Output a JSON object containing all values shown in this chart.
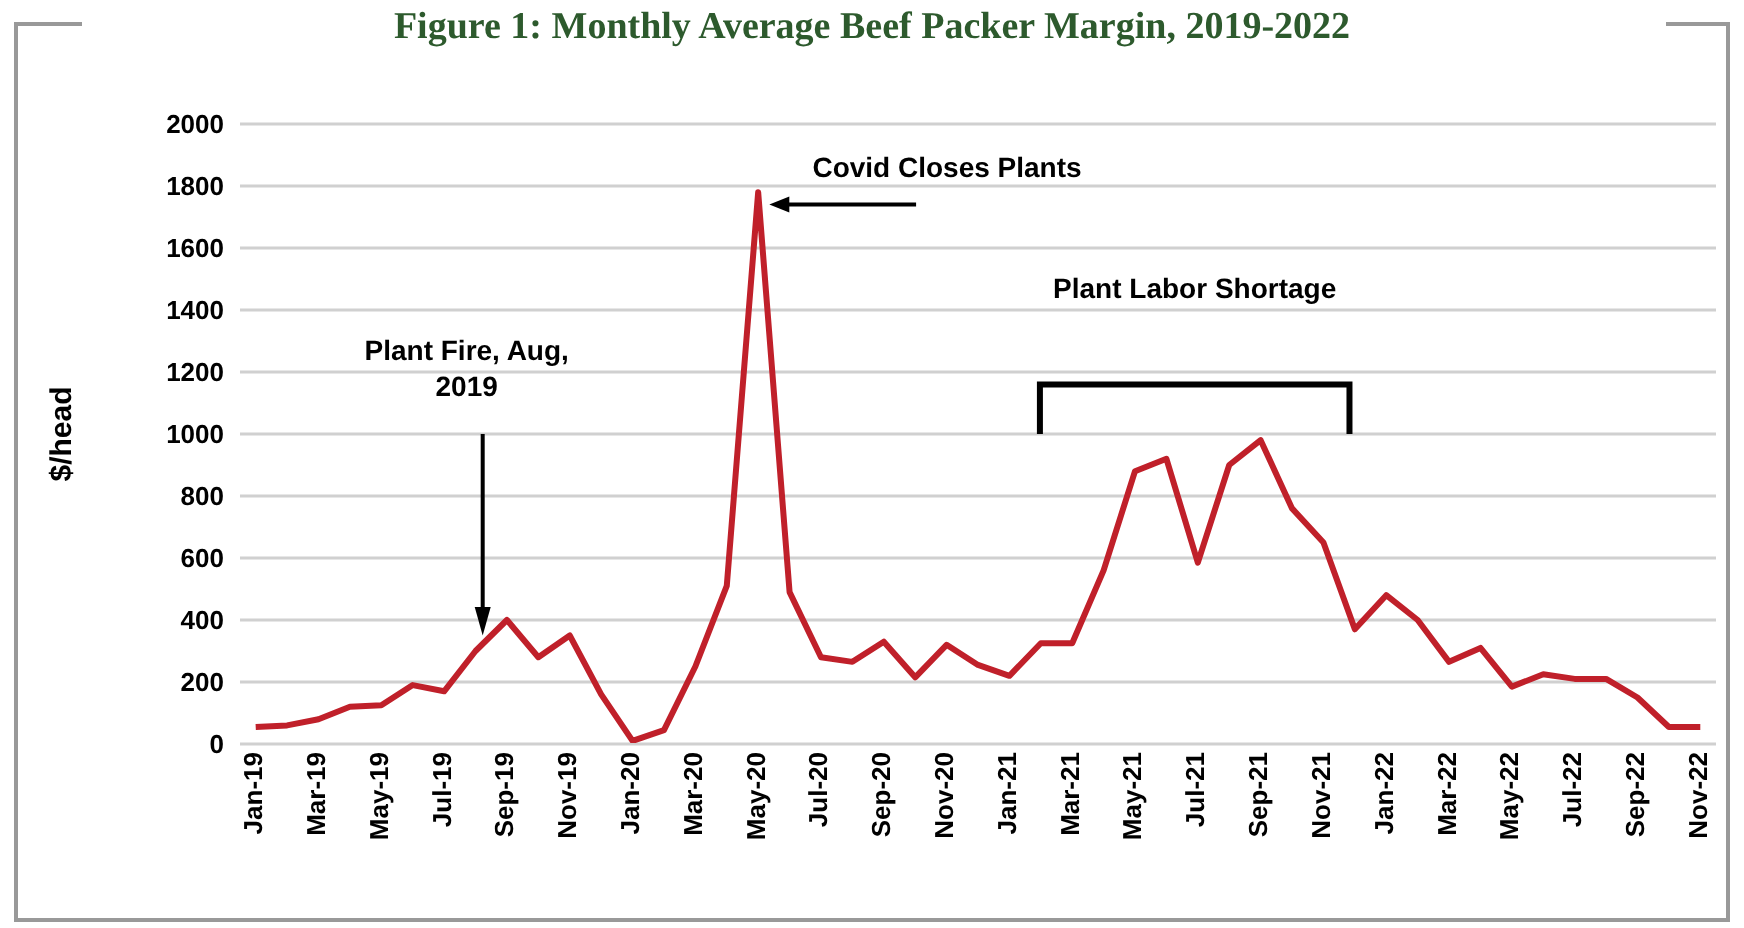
{
  "chart_data": {
    "type": "line",
    "title": "Figure 1: Monthly Average Beef Packer Margin, 2019-2022",
    "ylabel": "$/head",
    "categories": [
      "Jan-19",
      null,
      "Mar-19",
      null,
      "May-19",
      null,
      "Jul-19",
      null,
      "Sep-19",
      null,
      "Nov-19",
      null,
      "Jan-20",
      null,
      "Mar-20",
      null,
      "May-20",
      null,
      "Jul-20",
      null,
      "Sep-20",
      null,
      "Nov-20",
      null,
      "Jan-21",
      null,
      "Mar-21",
      null,
      "May-21",
      null,
      "Jul-21",
      null,
      "Sep-21",
      null,
      "Nov-21",
      null,
      "Jan-22",
      null,
      "Mar-22",
      null,
      "May-22",
      null,
      "Jul-22",
      null,
      "Sep-22",
      null,
      "Nov-22"
    ],
    "series": [
      {
        "color": "#c0202a",
        "values": [
          55,
          60,
          80,
          120,
          125,
          190,
          170,
          300,
          400,
          280,
          350,
          160,
          10,
          45,
          250,
          510,
          1780,
          490,
          280,
          265,
          330,
          215,
          320,
          255,
          220,
          325,
          325,
          560,
          880,
          920,
          585,
          900,
          980,
          760,
          650,
          370,
          480,
          400,
          265,
          310,
          185,
          225,
          210,
          210,
          150,
          55,
          55
        ]
      }
    ],
    "ylim": [
      0,
      2000
    ],
    "yticks": [
      0,
      200,
      400,
      600,
      800,
      1000,
      1200,
      1400,
      1600,
      1800,
      2000
    ],
    "grid": "y",
    "marker": "none",
    "line_style": "solid",
    "annotations": [
      "Plant Fire, Aug, 2019",
      "Covid Closes Plants",
      "Plant Labor Shortage"
    ]
  }
}
